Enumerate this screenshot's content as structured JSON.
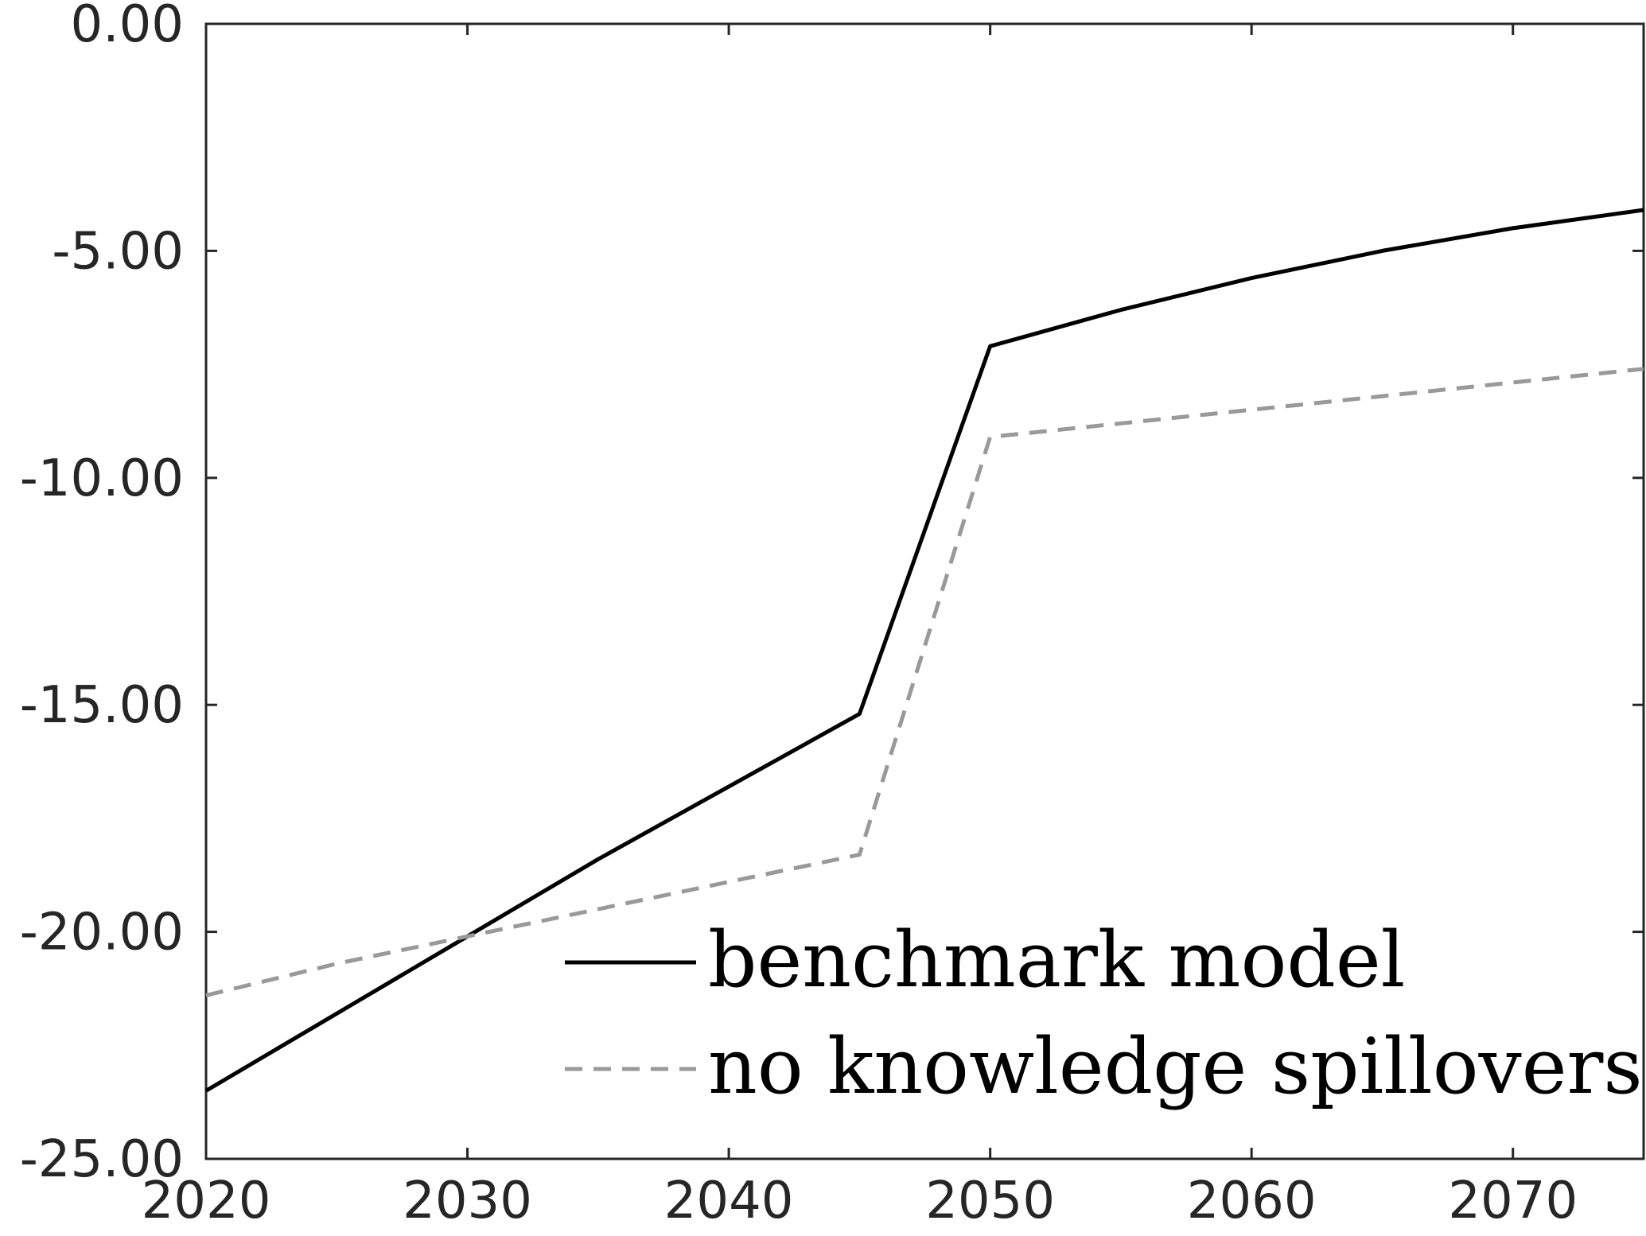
{
  "chart_data": {
    "type": "line",
    "title": "",
    "xlabel": "",
    "ylabel": "",
    "xlim": [
      2020,
      2075
    ],
    "ylim": [
      -25,
      0
    ],
    "xticks": [
      2020,
      2030,
      2040,
      2050,
      2060,
      2070
    ],
    "xtick_labels": [
      "2020",
      "2030",
      "2040",
      "2050",
      "2060",
      "2070"
    ],
    "yticks": [
      0,
      -5,
      -10,
      -15,
      -20,
      -25
    ],
    "ytick_labels": [
      "0.00",
      "-5.00",
      "-10.00",
      "-15.00",
      "-20.00",
      "-25.00"
    ],
    "grid": false,
    "legend_position": "bottom-right",
    "series": [
      {
        "name": "benchmark model",
        "color": "#000000",
        "style": "solid",
        "x": [
          2020,
          2025,
          2030,
          2035,
          2040,
          2045,
          2050,
          2055,
          2060,
          2065,
          2070,
          2075
        ],
        "y": [
          -23.5,
          -21.8,
          -20.1,
          -18.4,
          -16.8,
          -15.2,
          -7.1,
          -6.3,
          -5.6,
          -5.0,
          -4.5,
          -4.1
        ]
      },
      {
        "name": "no knowledge spillovers",
        "color": "#999999",
        "style": "dashed",
        "x": [
          2020,
          2025,
          2030,
          2035,
          2040,
          2045,
          2050,
          2055,
          2060,
          2065,
          2070,
          2075
        ],
        "y": [
          -21.4,
          -20.7,
          -20.1,
          -19.5,
          -18.9,
          -18.3,
          -9.1,
          -8.8,
          -8.5,
          -8.2,
          -7.9,
          -7.6
        ]
      }
    ]
  }
}
